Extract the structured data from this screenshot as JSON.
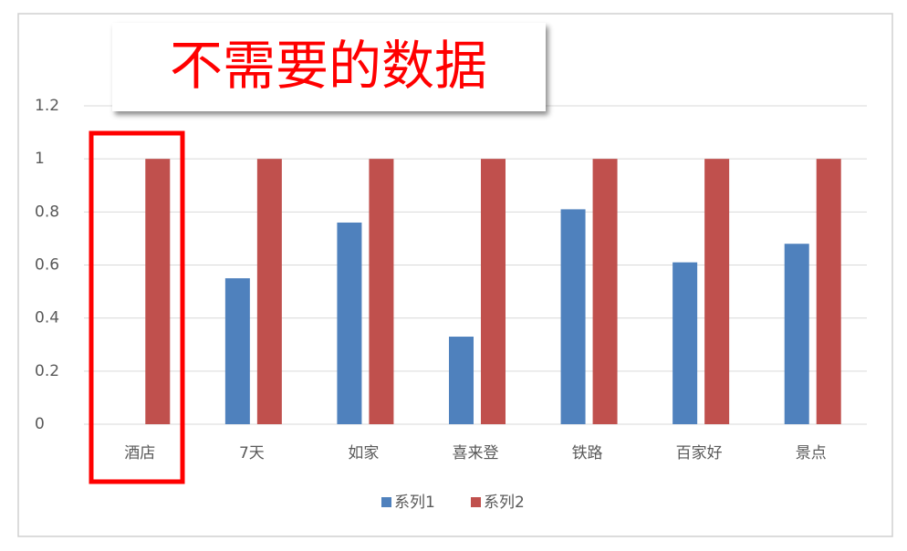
{
  "chart_data": {
    "type": "bar",
    "annotation": "不需要的数据",
    "categories": [
      "酒店",
      "7天",
      "如家",
      "喜来登",
      "铁路",
      "百家好",
      "景点"
    ],
    "series": [
      {
        "name": "系列1",
        "color": "#4f81bd",
        "values": [
          null,
          0.55,
          0.76,
          0.33,
          0.81,
          0.61,
          0.68
        ]
      },
      {
        "name": "系列2",
        "color": "#c0504d",
        "values": [
          1,
          1,
          1,
          1,
          1,
          1,
          1
        ]
      }
    ],
    "ylim": [
      0,
      1.2
    ],
    "yticks": [
      0,
      0.2,
      0.4,
      0.6,
      0.8,
      1,
      1.2
    ],
    "grid": true,
    "legend": "bottom"
  }
}
